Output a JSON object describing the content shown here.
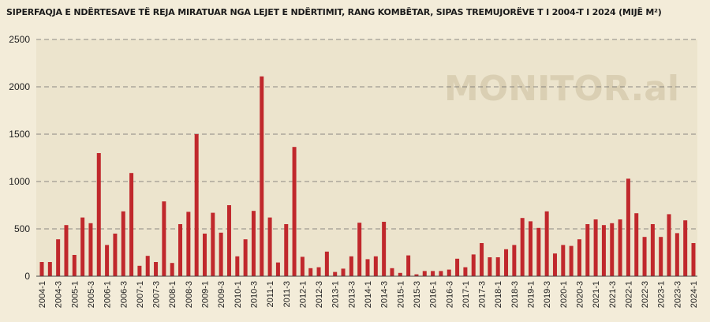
{
  "chart_data": {
    "type": "bar",
    "title": "SIPERFAQJA E NDËRTESAVE TË REJA MIRATUAR NGA LEJET E NDËRTIMIT, RANG KOMBËTAR, SIPAS TREMUJORËVE T I 2004-T I 2024 (MIJË M²)",
    "watermark": "MONITOR.al",
    "xlabel": "",
    "ylabel": "",
    "ylim": [
      0,
      2500
    ],
    "yticks": [
      0,
      500,
      1000,
      1500,
      2000,
      2500
    ],
    "grid": true,
    "legend": "none",
    "bar_color": "#c0282c",
    "categories": [
      "2004-1",
      "2004-2",
      "2004-3",
      "2004-4",
      "2005-1",
      "2005-2",
      "2005-3",
      "2005-4",
      "2006-1",
      "2006-2",
      "2006-3",
      "2006-4",
      "2007-1",
      "2007-2",
      "2007-3",
      "2007-4",
      "2008-1",
      "2008-2",
      "2008-3",
      "2008-4",
      "2009-1",
      "2009-2",
      "2009-3",
      "2009-4",
      "2010-1",
      "2010-2",
      "2010-3",
      "2010-4",
      "2011-1",
      "2011-2",
      "2011-3",
      "2011-4",
      "2012-1",
      "2012-2",
      "2012-3",
      "2012-4",
      "2013-1",
      "2013-2",
      "2013-3",
      "2013-4",
      "2014-1",
      "2014-2",
      "2014-3",
      "2014-4",
      "2015-1",
      "2015-2",
      "2015-3",
      "2015-4",
      "2016-1",
      "2016-2",
      "2016-3",
      "2016-4",
      "2017-1",
      "2017-2",
      "2017-3",
      "2017-4",
      "2018-1",
      "2018-2",
      "2018-3",
      "2018-4",
      "2019-1",
      "2019-2",
      "2019-3",
      "2019-4",
      "2020-1",
      "2020-2",
      "2020-3",
      "2020-4",
      "2021-1",
      "2021-2",
      "2021-3",
      "2021-4",
      "2022-1",
      "2022-2",
      "2022-3",
      "2022-4",
      "2023-1",
      "2023-2",
      "2023-3",
      "2023-4",
      "2024-1"
    ],
    "tick_labels": [
      "2004-1",
      "2004-3",
      "2005-1",
      "2005-3",
      "2006-1",
      "2006-3",
      "2007-1",
      "2007-3",
      "2008-1",
      "2008-3",
      "2009-1",
      "2009-3",
      "2010-1",
      "2010-3",
      "2011-1",
      "2011-3",
      "2012-1",
      "2012-3",
      "2013-1",
      "2013-3",
      "2014-1",
      "2014-3",
      "2015-1",
      "2015-3",
      "2016-1",
      "2016-3",
      "2017-1",
      "2017-3",
      "2018-1",
      "2018-3",
      "2019-1",
      "2019-3",
      "2020-1",
      "2020-3",
      "2021-1",
      "2021-3",
      "2022-1",
      "2022-3",
      "2023-1",
      "2023-3",
      "2024-1"
    ],
    "values": [
      150,
      150,
      390,
      540,
      225,
      620,
      560,
      1300,
      330,
      450,
      685,
      1090,
      110,
      215,
      150,
      790,
      140,
      550,
      680,
      1500,
      450,
      670,
      460,
      750,
      210,
      390,
      690,
      2110,
      620,
      145,
      550,
      1365,
      205,
      85,
      95,
      260,
      45,
      80,
      210,
      565,
      180,
      210,
      575,
      85,
      35,
      220,
      20,
      55,
      55,
      55,
      70,
      185,
      95,
      230,
      350,
      200,
      200,
      285,
      330,
      615,
      580,
      510,
      685,
      240,
      330,
      320,
      390,
      550,
      600,
      540,
      560,
      600,
      1030,
      665,
      415,
      550,
      415,
      655,
      455,
      590,
      350
    ]
  }
}
